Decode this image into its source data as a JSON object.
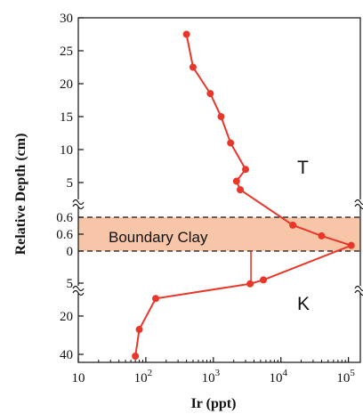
{
  "chart_data": {
    "type": "line",
    "xlabel": "Ir (ppt)",
    "ylabel": "Relative Depth (cm)",
    "x_scale": "log",
    "x_ticks": [
      {
        "value": 10,
        "label": "10"
      },
      {
        "value": 100,
        "label": "10",
        "exp": "2"
      },
      {
        "value": 1000,
        "label": "10",
        "exp": "3"
      },
      {
        "value": 10000,
        "label": "10",
        "exp": "4"
      },
      {
        "value": 100000,
        "label": "10",
        "exp": "5"
      }
    ],
    "xlim": [
      10,
      200000
    ],
    "y_segments": [
      {
        "name": "upper",
        "range": [
          30,
          3.5
        ],
        "ticks": [
          "30",
          "25",
          "20",
          "15",
          "10",
          "5"
        ]
      },
      {
        "name": "clay",
        "range": [
          0.75,
          -0.1
        ],
        "ticks": [
          "0.6",
          "0.6",
          "0"
        ]
      },
      {
        "name": "lower",
        "range": [
          4,
          42
        ],
        "ticks": [
          "5",
          "20",
          "40"
        ]
      }
    ],
    "annotations": {
      "band": "Boundary Clay",
      "upper_region": "T",
      "lower_region": "K"
    },
    "series": [
      {
        "color": "#e8372a",
        "points": [
          {
            "seg": "upper",
            "x": 400,
            "y": 27.5
          },
          {
            "seg": "upper",
            "x": 500,
            "y": 22.5
          },
          {
            "seg": "upper",
            "x": 900,
            "y": 18.5
          },
          {
            "seg": "upper",
            "x": 1300,
            "y": 15
          },
          {
            "seg": "upper",
            "x": 1800,
            "y": 11
          },
          {
            "seg": "upper",
            "x": 3000,
            "y": 7
          },
          {
            "seg": "upper",
            "x": 2200,
            "y": 5.2
          },
          {
            "seg": "upper",
            "x": 2500,
            "y": 3.9
          },
          {
            "seg": "clay",
            "x": 15000,
            "y": 0.46
          },
          {
            "seg": "clay",
            "x": 40000,
            "y": 0.27
          },
          {
            "seg": "clay",
            "x": 110000,
            "y": 0.1
          },
          {
            "seg": "lower",
            "x": 5500,
            "y": 4.4
          },
          {
            "seg": "lower",
            "x": 3500,
            "y": 5.3
          },
          {
            "seg": "lower",
            "x": 140,
            "y": 12
          },
          {
            "seg": "lower",
            "x": 80,
            "y": 27
          },
          {
            "seg": "lower",
            "x": 70,
            "y": 41
          }
        ]
      }
    ],
    "error_bar": {
      "x": 3600,
      "y_upper": "0",
      "note": "vertical tick below clay"
    }
  }
}
